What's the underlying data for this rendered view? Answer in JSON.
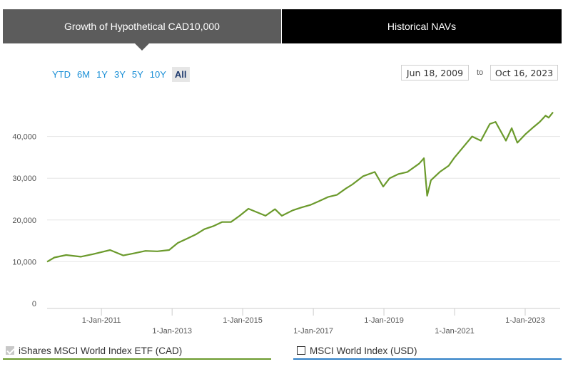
{
  "tabs": [
    {
      "label": "Growth of Hypothetical CAD10,000"
    },
    {
      "label": "Historical NAVs"
    }
  ],
  "ranges": [
    "YTD",
    "6M",
    "1Y",
    "3Y",
    "5Y",
    "10Y",
    "All"
  ],
  "selected_range": "All",
  "date_from": "Jun 18, 2009",
  "date_to_label": "to",
  "date_to": "Oct 16, 2023",
  "legend": [
    {
      "label": "iShares MSCI World Index ETF (CAD)",
      "checked": true,
      "color": "#6b9a2c"
    },
    {
      "label": "MSCI World Index (USD)",
      "checked": false,
      "color": "#2f7fc6"
    }
  ],
  "colors": {
    "series": "#6b9a2c",
    "grid": "#e6e6e6",
    "tab_active": "#5c5c5c",
    "tab_inactive": "#000000",
    "link": "#1a8fd6"
  },
  "chart_data": {
    "type": "line",
    "title": "",
    "xlabel": "",
    "ylabel": "",
    "ylim": [
      0,
      50000
    ],
    "y_ticks": [
      "0",
      "10,000",
      "20,000",
      "30,000",
      "40,000"
    ],
    "x_tick_labels": [
      "1-Jan-2011",
      "1-Jan-2013",
      "1-Jan-2015",
      "1-Jan-2017",
      "1-Jan-2019",
      "1-Jan-2021",
      "1-Jan-2023"
    ],
    "grid": true,
    "series": [
      {
        "name": "iShares MSCI World Index ETF (CAD)",
        "x": [
          "2009-06-18",
          "2009-09-01",
          "2010-01-01",
          "2010-06-01",
          "2010-10-01",
          "2011-01-01",
          "2011-04-01",
          "2011-08-15",
          "2011-12-01",
          "2012-04-01",
          "2012-08-01",
          "2012-12-01",
          "2013-03-01",
          "2013-06-01",
          "2013-09-01",
          "2013-12-01",
          "2014-03-01",
          "2014-06-01",
          "2014-09-01",
          "2014-12-01",
          "2015-03-01",
          "2015-08-25",
          "2015-12-01",
          "2016-02-10",
          "2016-06-01",
          "2016-09-01",
          "2016-12-01",
          "2017-03-01",
          "2017-06-01",
          "2017-09-01",
          "2017-12-01",
          "2018-02-08",
          "2018-06-01",
          "2018-09-28",
          "2018-12-24",
          "2019-03-01",
          "2019-06-01",
          "2019-09-01",
          "2019-12-31",
          "2020-02-19",
          "2020-03-23",
          "2020-05-01",
          "2020-08-01",
          "2020-11-01",
          "2021-01-01",
          "2021-04-01",
          "2021-07-01",
          "2021-09-30",
          "2021-12-31",
          "2022-03-01",
          "2022-06-16",
          "2022-08-15",
          "2022-10-12",
          "2023-01-01",
          "2023-03-15",
          "2023-06-01",
          "2023-07-31",
          "2023-09-01",
          "2023-10-16"
        ],
        "values": [
          10000,
          11000,
          11600,
          11200,
          11800,
          12300,
          12800,
          11500,
          12000,
          12600,
          12500,
          12800,
          14500,
          15500,
          16500,
          17800,
          18500,
          19500,
          19500,
          21000,
          22700,
          21000,
          22600,
          21000,
          22300,
          23000,
          23600,
          24500,
          25500,
          26000,
          27500,
          28500,
          30500,
          31500,
          28000,
          30000,
          31000,
          31500,
          33500,
          34800,
          25800,
          29500,
          31500,
          33000,
          35000,
          37500,
          40000,
          39000,
          43000,
          43500,
          39000,
          42000,
          38500,
          40500,
          42000,
          43500,
          45000,
          44500,
          45800
        ]
      }
    ]
  }
}
